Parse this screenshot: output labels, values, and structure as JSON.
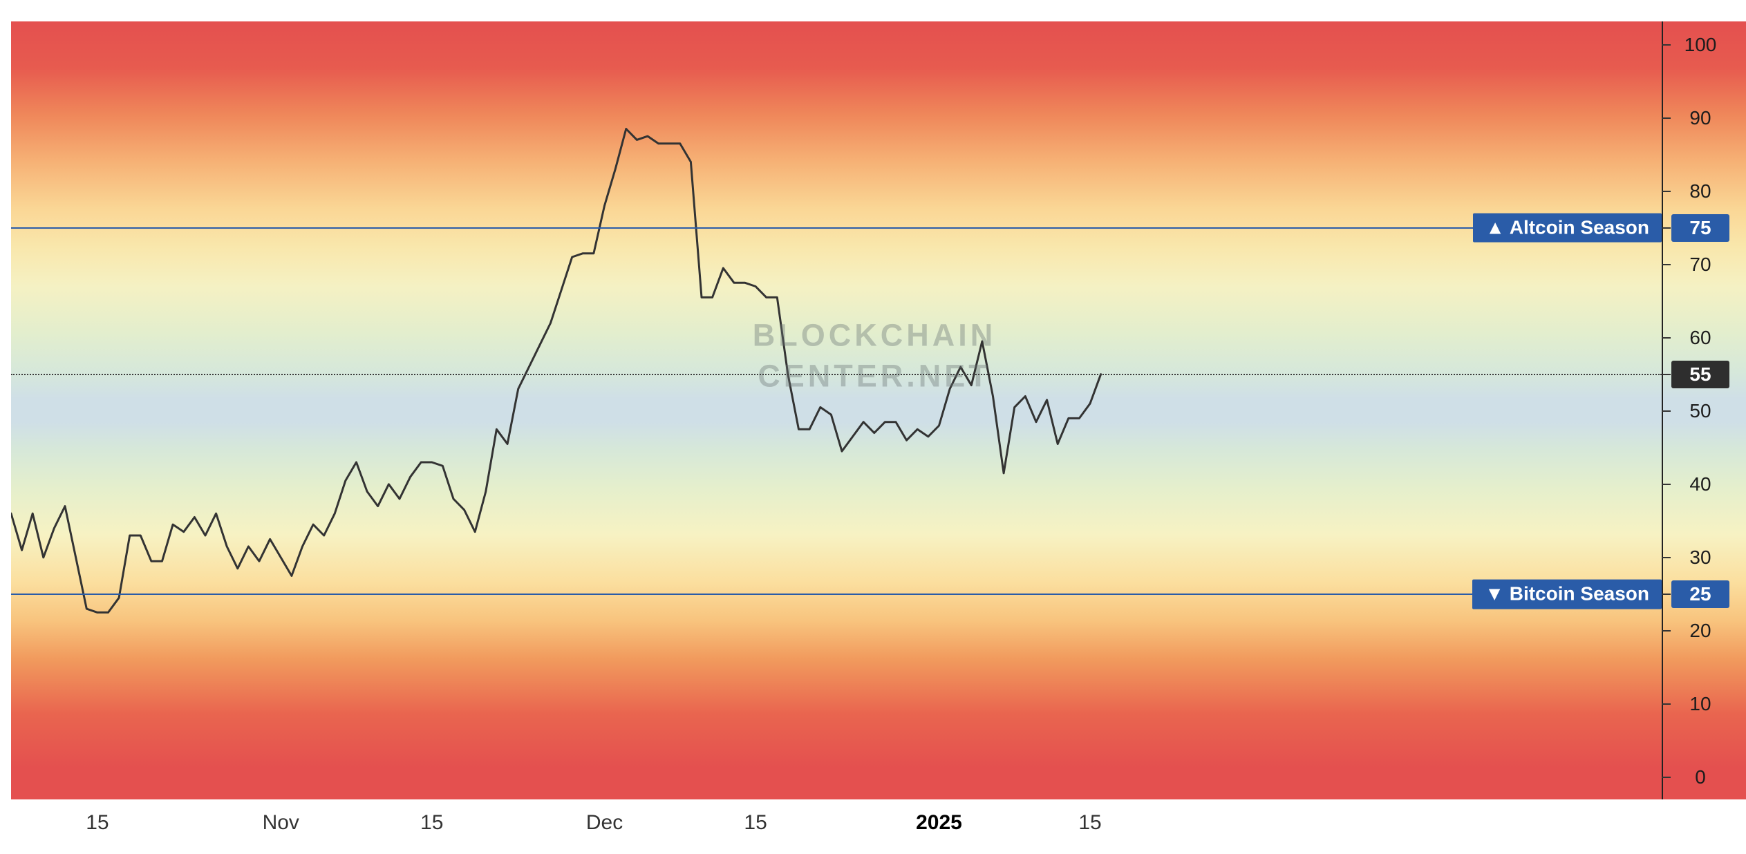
{
  "watermark": {
    "line1": "BLOCKCHAIN",
    "line2": "CENTER.NET"
  },
  "annotations": {
    "altcoin": {
      "label": "▲ Altcoin Season",
      "value": 75,
      "axis_label": "75",
      "color": "#2a5ca8"
    },
    "bitcoin": {
      "label": "▼ Bitcoin Season",
      "value": 25,
      "axis_label": "25",
      "color": "#2a5ca8"
    },
    "current": {
      "value": 55,
      "axis_label": "55",
      "badge_color": "#2e2e2e",
      "line_style": "dotted"
    }
  },
  "chart_data": {
    "type": "line",
    "line_color": "#333333",
    "ylim": [
      0,
      100
    ],
    "y_ticks": [
      100,
      90,
      80,
      70,
      60,
      50,
      40,
      30,
      20,
      10,
      0
    ],
    "x_ticks": [
      {
        "label": "15",
        "index": 8,
        "bold": false
      },
      {
        "label": "Nov",
        "index": 25,
        "bold": false
      },
      {
        "label": "15",
        "index": 39,
        "bold": false
      },
      {
        "label": "Dec",
        "index": 55,
        "bold": false
      },
      {
        "label": "15",
        "index": 69,
        "bold": false
      },
      {
        "label": "2025",
        "index": 86,
        "bold": true
      },
      {
        "label": "15",
        "index": 100,
        "bold": false
      }
    ],
    "reference_lines": [
      {
        "value": 75,
        "label": "▲ Altcoin Season",
        "style": "solid",
        "color": "#2a5ca8"
      },
      {
        "value": 55,
        "label": "55",
        "style": "dotted",
        "color": "#333333"
      },
      {
        "value": 25,
        "label": "▼ Bitcoin Season",
        "style": "solid",
        "color": "#2a5ca8"
      }
    ],
    "values": [
      36,
      31,
      36,
      30,
      34,
      37,
      30,
      23,
      22.5,
      22.5,
      24.5,
      33,
      33,
      29.5,
      29.5,
      34.5,
      33.5,
      35.5,
      33,
      36,
      31.5,
      28.5,
      31.5,
      29.5,
      32.5,
      30,
      27.5,
      31.5,
      34.5,
      33,
      36,
      40.5,
      43,
      39,
      37,
      40,
      38,
      41,
      43,
      43,
      42.5,
      38,
      36.5,
      33.5,
      39,
      47.5,
      45.5,
      53,
      56,
      59,
      62,
      66.5,
      71,
      71.5,
      71.5,
      78,
      83,
      88.5,
      87,
      87.5,
      86.5,
      86.5,
      86.5,
      84,
      65.5,
      65.5,
      69.5,
      67.5,
      67.5,
      67,
      65.5,
      65.5,
      55,
      47.5,
      47.5,
      50.5,
      49.5,
      44.5,
      46.5,
      48.5,
      47,
      48.5,
      48.5,
      46,
      47.5,
      46.5,
      48,
      53,
      56,
      53.5,
      59.5,
      52,
      41.5,
      50.5,
      52,
      48.5,
      51.5,
      45.5,
      49,
      49,
      51,
      55
    ]
  }
}
